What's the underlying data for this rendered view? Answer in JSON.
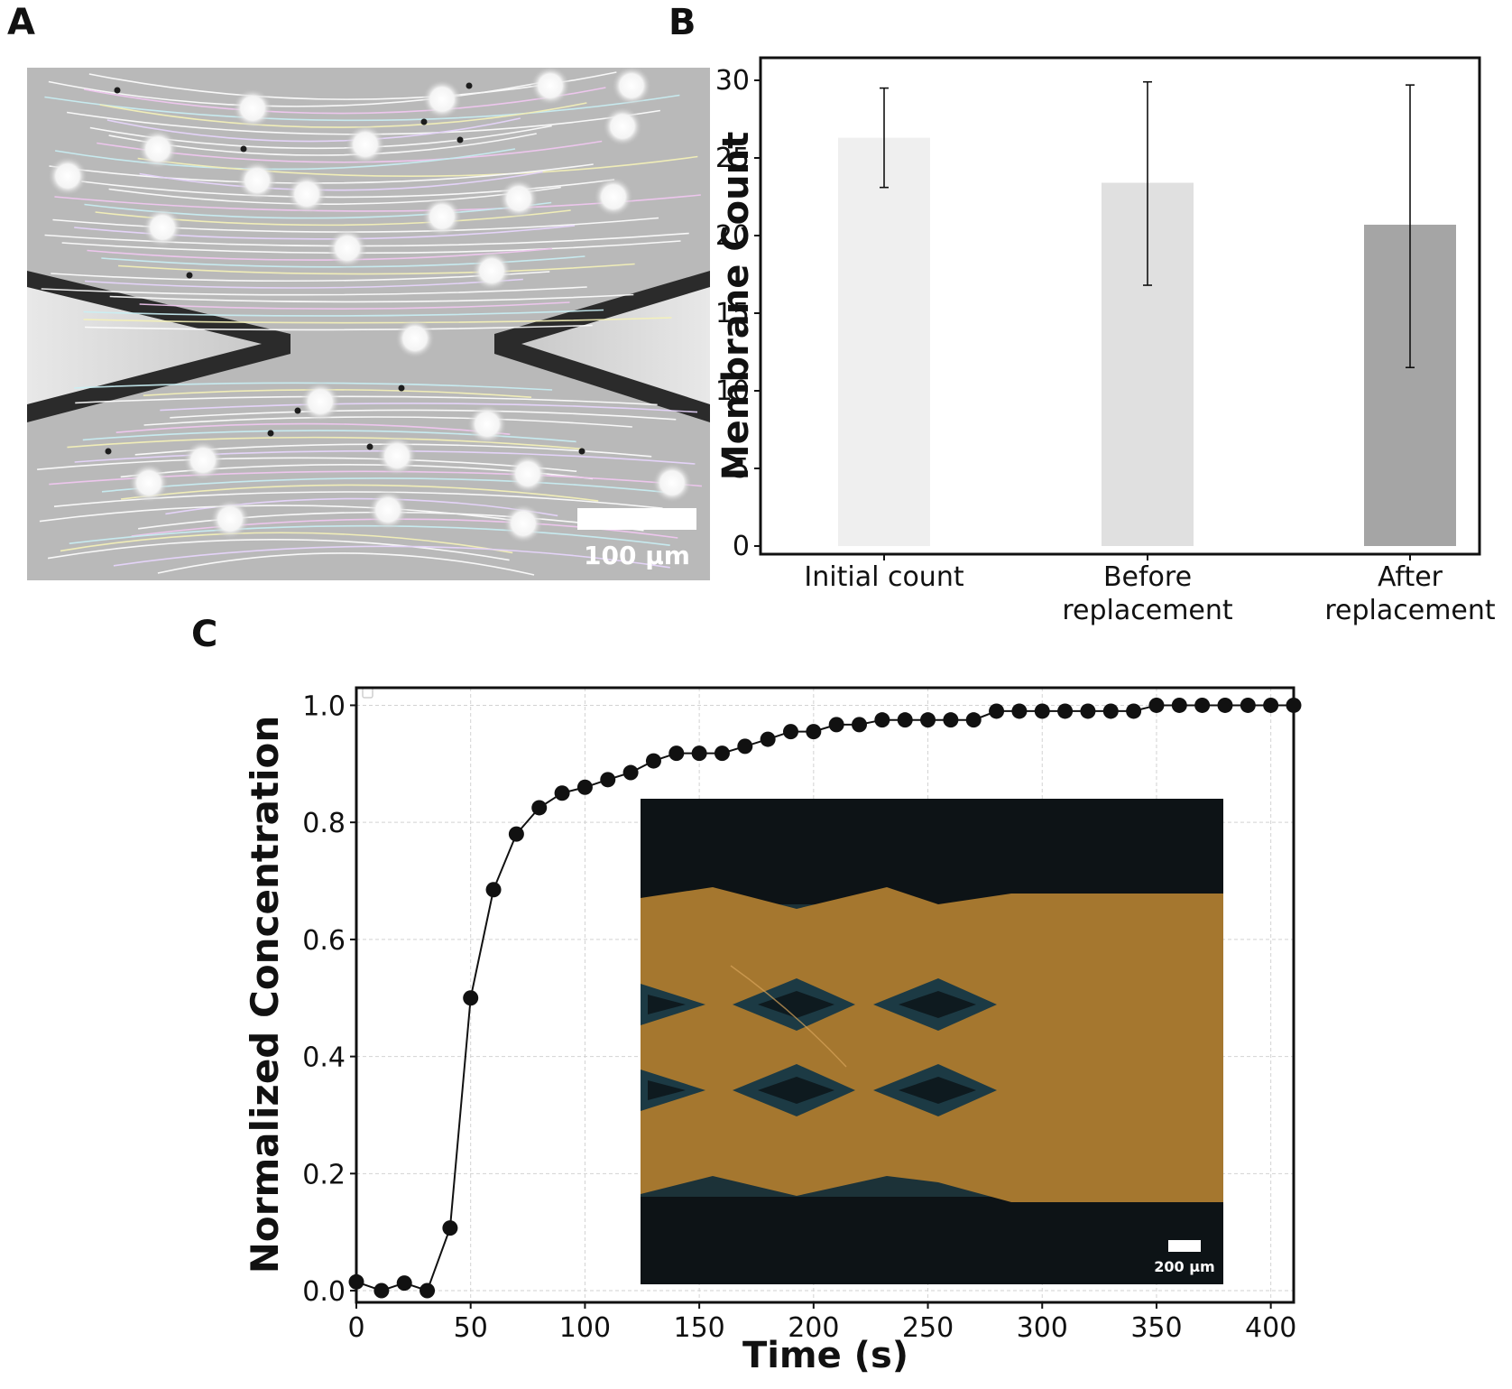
{
  "panels": {
    "a": {
      "letter": "A",
      "scale_label": "100 µm"
    },
    "b": {
      "letter": "B"
    },
    "c": {
      "letter": "C",
      "inset_scale_label": "200 µm"
    }
  },
  "chart_data": [
    {
      "panel": "B",
      "type": "bar",
      "categories": [
        "Initial count",
        "Before\nreplacement",
        "After\nreplacement"
      ],
      "values": [
        26.3,
        23.4,
        20.7
      ],
      "error_low": [
        23.1,
        16.8,
        11.5
      ],
      "error_high": [
        29.5,
        29.9,
        29.7
      ],
      "bar_colors": [
        "#efefef",
        "#e0e0e0",
        "#a5a5a5"
      ],
      "xlabel": "",
      "ylabel": "Membrane Count",
      "ylim": [
        0,
        31
      ],
      "yticks": [
        0,
        5,
        10,
        15,
        20,
        25,
        30
      ],
      "grid": false
    },
    {
      "panel": "C",
      "type": "line",
      "xlabel": "Time (s)",
      "ylabel": "Normalized Concentration",
      "xlim": [
        0,
        410
      ],
      "ylim": [
        -0.02,
        1.03
      ],
      "xticks": [
        0,
        50,
        100,
        150,
        200,
        250,
        300,
        350,
        400
      ],
      "yticks": [
        0.0,
        0.2,
        0.4,
        0.6,
        0.8,
        1.0
      ],
      "grid": true,
      "legend": "top-left (empty)",
      "x": [
        0,
        11,
        21,
        31,
        41,
        50,
        60,
        70,
        80,
        90,
        100,
        110,
        120,
        130,
        140,
        150,
        160,
        170,
        180,
        190,
        200,
        210,
        220,
        230,
        240,
        250,
        260,
        270,
        280,
        290,
        300,
        310,
        320,
        330,
        340,
        350,
        360,
        370,
        380,
        390,
        400,
        410
      ],
      "y": [
        0.015,
        0.0,
        0.013,
        0.0,
        0.107,
        0.5,
        0.685,
        0.78,
        0.825,
        0.85,
        0.86,
        0.873,
        0.885,
        0.905,
        0.918,
        0.918,
        0.918,
        0.93,
        0.942,
        0.955,
        0.955,
        0.967,
        0.967,
        0.975,
        0.975,
        0.975,
        0.975,
        0.975,
        0.99,
        0.99,
        0.99,
        0.99,
        0.99,
        0.99,
        0.99,
        1.0,
        1.0,
        1.0,
        1.0,
        1.0,
        1.0,
        1.0
      ]
    }
  ]
}
